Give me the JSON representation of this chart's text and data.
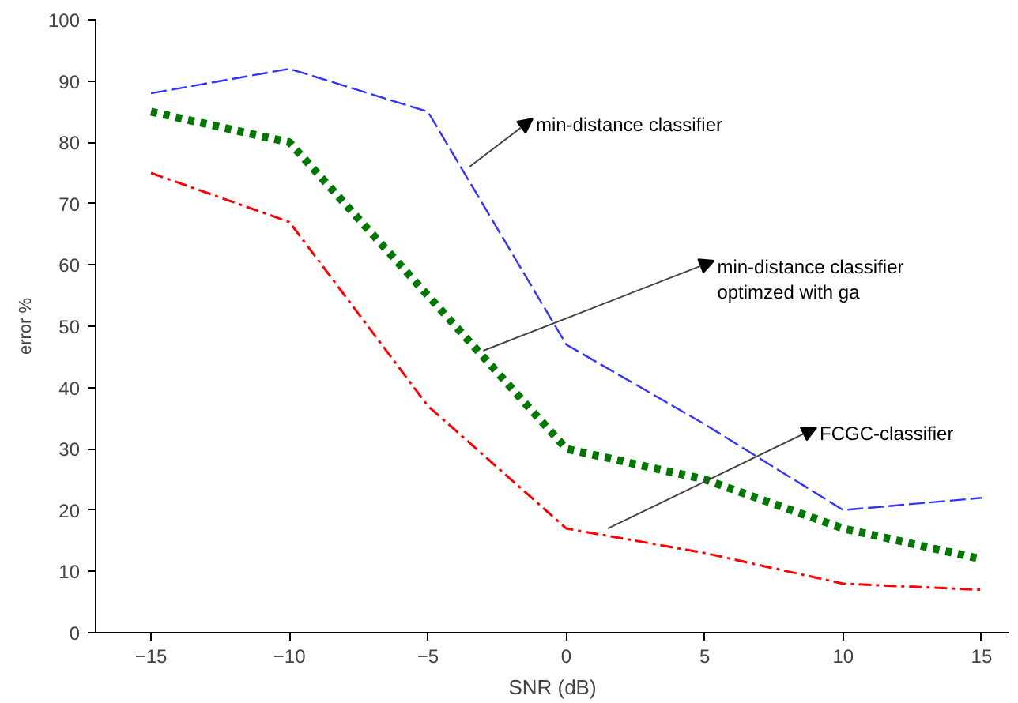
{
  "chart_data": {
    "type": "line",
    "xlabel": "SNR (dB)",
    "ylabel": "error %",
    "x": [
      -15,
      -10,
      -5,
      0,
      5,
      10,
      15
    ],
    "series": [
      {
        "color": "#3333ff",
        "line_style": "dashed",
        "values": [
          88,
          92,
          85,
          47,
          34,
          20,
          22
        ]
      },
      {
        "color": "#007700",
        "line_style": "dotted",
        "values": [
          85,
          80,
          55,
          30,
          25,
          17,
          12
        ]
      },
      {
        "color": "#ff0000",
        "line_style": "dashdot",
        "values": [
          75,
          67,
          37,
          17,
          13,
          8,
          7
        ]
      }
    ],
    "annotations": [
      {
        "text": "min-distance classifier",
        "x": -3.5,
        "y": 76
      },
      {
        "text": "min-distance classifier\noptimzed with ga",
        "x": -3,
        "y": 46
      },
      {
        "text": "FCGC-classifier",
        "x": 1.5,
        "y": 17
      }
    ],
    "xlim": [
      -17,
      16
    ],
    "ylim": [
      0,
      100
    ],
    "xticks": [
      -15,
      -10,
      -5,
      0,
      5,
      10,
      15
    ],
    "yticks": [
      0,
      10,
      20,
      30,
      40,
      50,
      60,
      70,
      80,
      90,
      100
    ],
    "grid": false,
    "marker": "none"
  }
}
